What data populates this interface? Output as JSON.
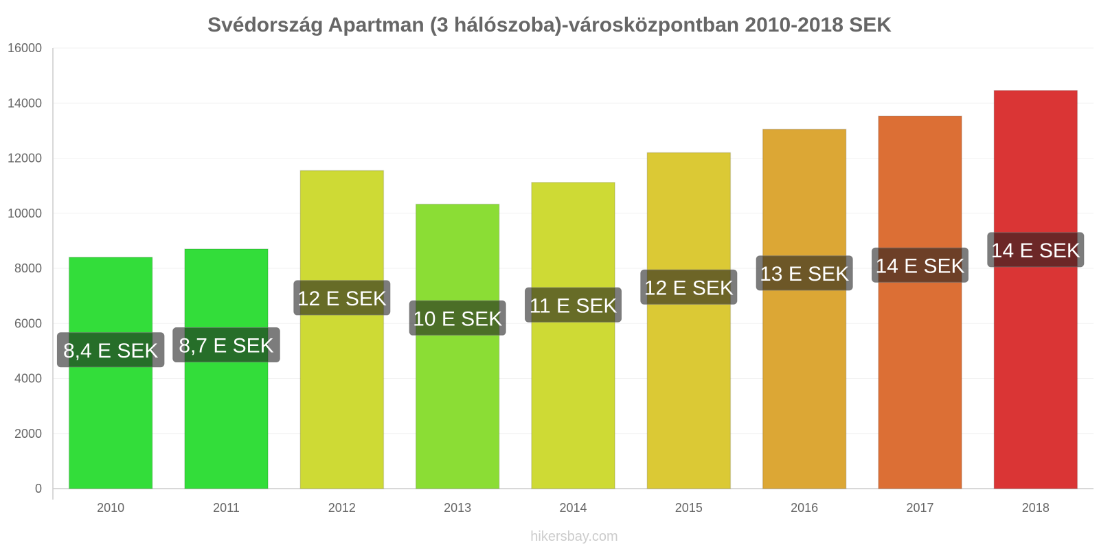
{
  "chart_data": {
    "type": "bar",
    "title": "Svédország Apartman (3 hálószoba)-városközpontban 2010-2018 SEK",
    "xlabel": "",
    "ylabel": "",
    "ylim": [
      0,
      16000
    ],
    "yticks": [
      0,
      2000,
      4000,
      6000,
      8000,
      10000,
      12000,
      14000,
      16000
    ],
    "grid": true,
    "legend": "none",
    "categories": [
      "2010",
      "2011",
      "2012",
      "2013",
      "2014",
      "2015",
      "2016",
      "2017",
      "2018"
    ],
    "values": [
      8400,
      8700,
      11550,
      10330,
      11120,
      12200,
      13050,
      13530,
      14460
    ],
    "data_labels": [
      "8,4 E SEK",
      "8,7 E SEK",
      "12 E SEK",
      "10 E SEK",
      "11 E SEK",
      "12 E SEK",
      "13 E SEK",
      "14 E SEK",
      "14 E SEK"
    ],
    "colors": [
      "#33dd3a",
      "#33dd3a",
      "#ceda35",
      "#8bdd35",
      "#ceda35",
      "#dbc935",
      "#dca735",
      "#dc6f35",
      "#da3535"
    ],
    "credit": "hikersbay.com"
  }
}
